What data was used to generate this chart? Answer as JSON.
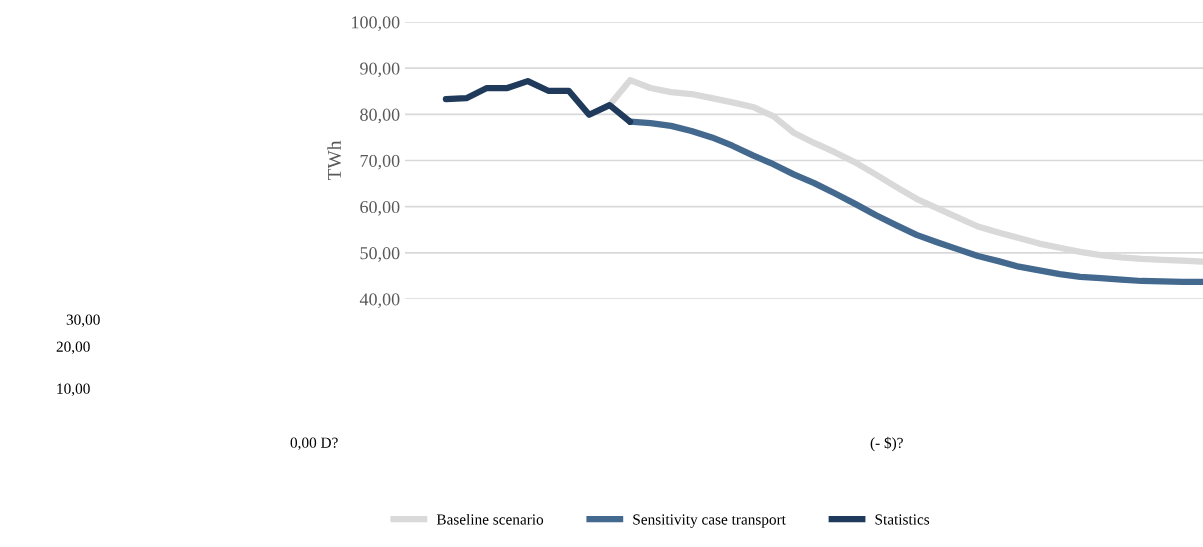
{
  "chart_data": {
    "type": "line",
    "ylabel": "TWh",
    "categories": [
      null,
      null,
      null,
      null,
      null,
      null,
      null,
      null,
      null,
      null,
      null,
      null,
      null,
      null,
      null,
      null,
      null,
      null,
      null,
      null,
      null,
      null,
      null,
      null,
      null,
      null,
      null,
      null,
      null,
      null,
      null,
      null,
      null,
      null,
      null,
      null,
      null,
      null
    ],
    "series": [
      {
        "name": "Baseline scenario",
        "color": "#d9d9d9",
        "values": [
          null,
          null,
          null,
          null,
          null,
          null,
          null,
          null,
          82.0,
          87.4,
          85.7,
          84.8,
          84.4,
          83.5,
          82.6,
          81.6,
          79.6,
          76.0,
          73.8,
          71.8,
          69.6,
          67.0,
          64.3,
          61.7,
          59.7,
          57.7,
          55.7,
          54.4,
          53.2,
          52.0,
          51.1,
          50.2,
          49.5,
          49.0,
          48.7,
          48.5,
          48.3,
          48.1
        ]
      },
      {
        "name": "Sensitivity case transport",
        "color": "#44698f",
        "values": [
          null,
          null,
          null,
          null,
          null,
          null,
          null,
          null,
          null,
          78.4,
          78.1,
          77.5,
          76.4,
          75.0,
          73.2,
          71.1,
          69.2,
          67.0,
          65.1,
          62.9,
          60.6,
          58.2,
          56.0,
          53.9,
          52.3,
          50.8,
          49.3,
          48.2,
          47.0,
          46.2,
          45.4,
          44.8,
          44.5,
          44.2,
          43.9,
          43.8,
          43.7,
          43.7
        ]
      },
      {
        "name": "Statistics",
        "color": "#1f3a5a",
        "values": [
          83.3,
          83.5,
          85.7,
          85.7,
          87.2,
          85.1,
          85.1,
          79.9,
          82.0,
          78.4,
          null,
          null,
          null,
          null,
          null,
          null,
          null,
          null,
          null,
          null,
          null,
          null,
          null,
          null,
          null,
          null,
          null,
          null,
          null,
          null,
          null,
          null,
          null,
          null,
          null,
          null,
          null,
          null
        ]
      }
    ],
    "ylim": [
      40,
      100
    ],
    "yticks": [
      {
        "value": 40,
        "label": "40,00"
      },
      {
        "value": 50,
        "label": "50,00"
      },
      {
        "value": 60,
        "label": "60,00"
      },
      {
        "value": 70,
        "label": "70,00"
      },
      {
        "value": 80,
        "label": "80,00"
      },
      {
        "value": 90,
        "label": "90,00"
      },
      {
        "value": 100,
        "label": "100,00"
      }
    ],
    "grid": "y",
    "legend": "bottom",
    "tick_labels": "y",
    "line_style": "solid",
    "marker": "none",
    "annotations": [
      "30,00",
      "20,00",
      "10,00",
      "0,00 D?",
      "(- $)?"
    ]
  }
}
